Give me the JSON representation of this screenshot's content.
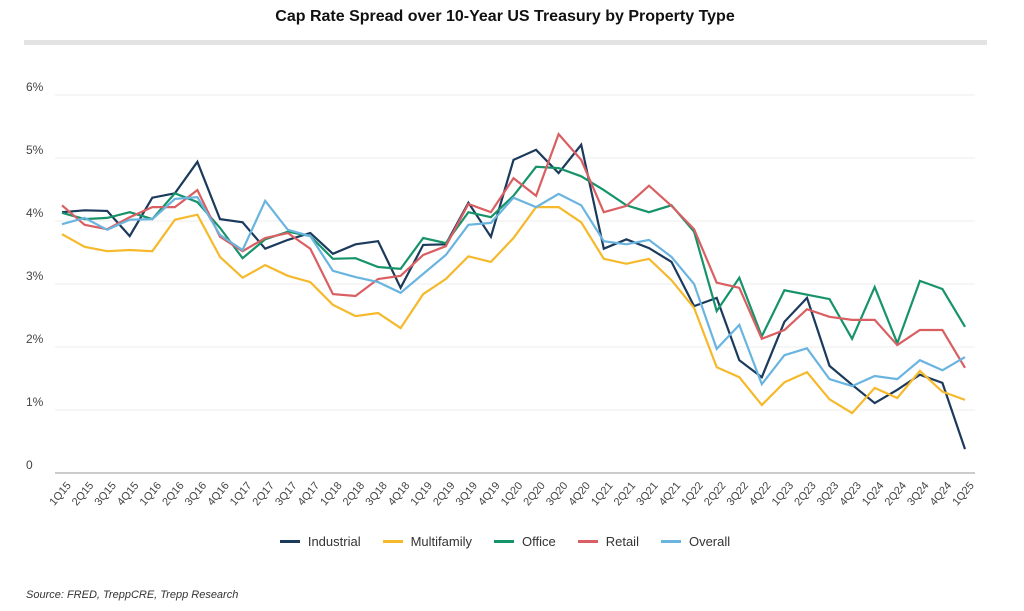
{
  "chart_data": {
    "type": "line",
    "title": "Cap Rate Spread over 10-Year US Treasury by Property Type",
    "xlabel": "",
    "ylabel": "",
    "ylim": [
      0,
      6
    ],
    "yticks": [
      0,
      1,
      2,
      3,
      4,
      5,
      6
    ],
    "ytick_labels": [
      "0",
      "1%",
      "2%",
      "3%",
      "4%",
      "5%",
      "6%"
    ],
    "grid": true,
    "legend_position": "bottom",
    "categories": [
      "1Q15",
      "2Q15",
      "3Q15",
      "4Q15",
      "1Q16",
      "2Q16",
      "3Q16",
      "4Q16",
      "1Q17",
      "2Q17",
      "3Q17",
      "4Q17",
      "1Q18",
      "2Q18",
      "3Q18",
      "4Q18",
      "1Q19",
      "2Q19",
      "3Q19",
      "4Q19",
      "1Q20",
      "2Q20",
      "3Q20",
      "4Q20",
      "1Q21",
      "2Q21",
      "3Q21",
      "4Q21",
      "1Q22",
      "2Q22",
      "3Q22",
      "4Q22",
      "1Q23",
      "2Q23",
      "3Q23",
      "4Q23",
      "1Q24",
      "2Q24",
      "3Q24",
      "4Q24",
      "1Q25"
    ],
    "series": [
      {
        "name": "Industrial",
        "color": "#1b3a5c",
        "values": [
          4.14,
          4.17,
          4.16,
          3.76,
          4.37,
          4.44,
          4.94,
          4.03,
          3.98,
          3.56,
          3.7,
          3.81,
          3.48,
          3.63,
          3.68,
          2.94,
          3.62,
          3.63,
          4.29,
          3.75,
          4.97,
          5.13,
          4.76,
          5.21,
          3.56,
          3.71,
          3.57,
          3.35,
          2.65,
          2.78,
          1.79,
          1.52,
          2.4,
          2.78,
          1.7,
          1.4,
          1.11,
          1.32,
          1.56,
          1.43,
          0.38
        ]
      },
      {
        "name": "Multifamily",
        "color": "#f6b92b",
        "values": [
          3.79,
          3.59,
          3.52,
          3.54,
          3.52,
          4.02,
          4.1,
          3.43,
          3.1,
          3.3,
          3.13,
          3.03,
          2.67,
          2.49,
          2.54,
          2.3,
          2.84,
          3.08,
          3.44,
          3.35,
          3.73,
          4.22,
          4.22,
          3.98,
          3.4,
          3.32,
          3.4,
          3.06,
          2.62,
          1.68,
          1.52,
          1.08,
          1.44,
          1.6,
          1.17,
          0.95,
          1.35,
          1.19,
          1.62,
          1.29,
          1.16
        ]
      },
      {
        "name": "Office",
        "color": "#17936a",
        "values": [
          4.13,
          4.03,
          4.05,
          4.14,
          4.03,
          4.44,
          4.3,
          3.89,
          3.41,
          3.71,
          3.83,
          3.76,
          3.4,
          3.41,
          3.27,
          3.24,
          3.73,
          3.65,
          4.14,
          4.06,
          4.4,
          4.86,
          4.84,
          4.71,
          4.49,
          4.25,
          4.14,
          4.25,
          3.83,
          2.57,
          3.1,
          2.17,
          2.9,
          2.83,
          2.76,
          2.13,
          2.95,
          2.06,
          3.05,
          2.92,
          2.32
        ]
      },
      {
        "name": "Retail",
        "color": "#d95f63",
        "values": [
          4.25,
          3.94,
          3.87,
          4.06,
          4.22,
          4.22,
          4.49,
          3.75,
          3.52,
          3.73,
          3.81,
          3.56,
          2.84,
          2.81,
          3.08,
          3.13,
          3.46,
          3.6,
          4.27,
          4.14,
          4.68,
          4.4,
          5.38,
          4.97,
          4.14,
          4.24,
          4.56,
          4.24,
          3.87,
          3.02,
          2.94,
          2.13,
          2.27,
          2.6,
          2.48,
          2.43,
          2.43,
          2.03,
          2.27,
          2.27,
          1.67
        ]
      },
      {
        "name": "Overall",
        "color": "#6ab4e0",
        "values": [
          3.95,
          4.05,
          3.86,
          4.02,
          4.03,
          4.35,
          4.38,
          3.78,
          3.54,
          4.32,
          3.86,
          3.76,
          3.21,
          3.11,
          3.03,
          2.86,
          3.16,
          3.46,
          3.94,
          3.97,
          4.37,
          4.22,
          4.43,
          4.25,
          3.68,
          3.63,
          3.7,
          3.43,
          3.0,
          1.97,
          2.35,
          1.41,
          1.87,
          1.98,
          1.49,
          1.38,
          1.54,
          1.49,
          1.79,
          1.63,
          1.84
        ]
      }
    ]
  },
  "source": "Source: FRED, TreppCRE, Trepp Research"
}
